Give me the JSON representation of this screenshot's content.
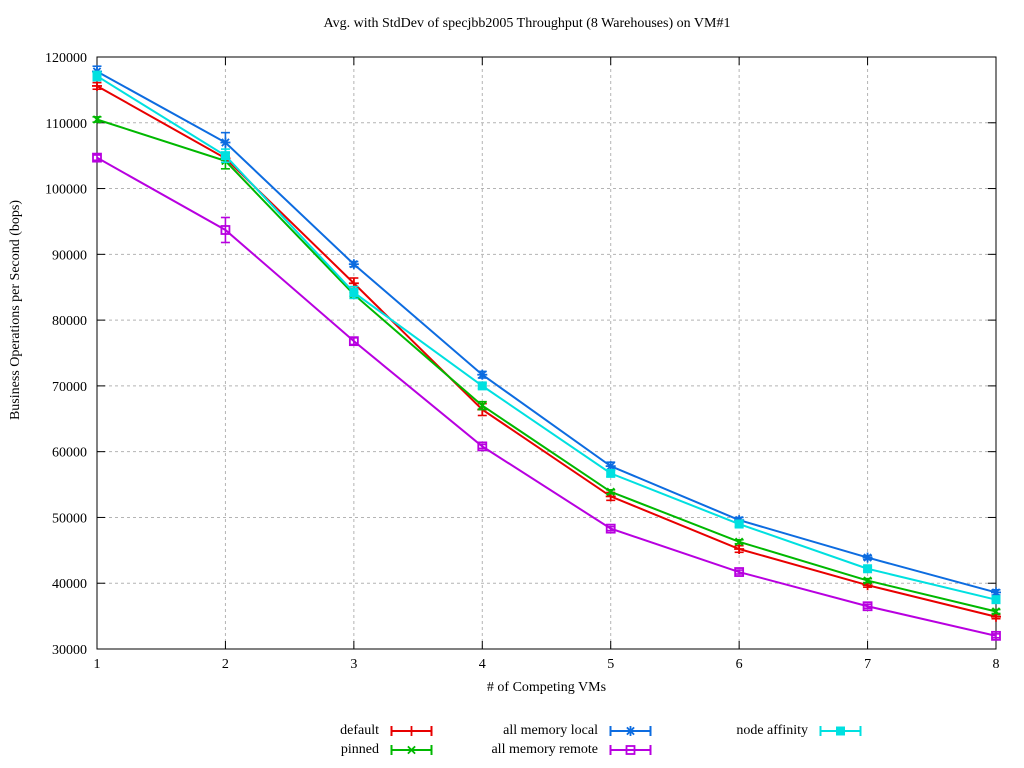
{
  "page": {
    "background": "#ffffff",
    "text_color": "#000000",
    "grid_color": "#b4b4b4"
  },
  "chart_data": {
    "type": "line",
    "title": "Avg. with StdDev of specjbb2005 Throughput (8 Warehouses) on VM#1",
    "xlabel": "# of Competing VMs",
    "ylabel": "Business Operations per Second (bops)",
    "xlim": [
      1,
      8
    ],
    "ylim": [
      30000,
      120000
    ],
    "xticks": [
      1,
      2,
      3,
      4,
      5,
      6,
      7,
      8
    ],
    "yticks": [
      30000,
      40000,
      50000,
      60000,
      70000,
      80000,
      90000,
      100000,
      110000,
      120000
    ],
    "grid": true,
    "legend_position": "below-plot",
    "error_bars": "stddev",
    "x": [
      1,
      2,
      3,
      4,
      5,
      6,
      7,
      8
    ],
    "series": [
      {
        "name": "default",
        "color": "#e80000",
        "marker": "plus",
        "values": [
          115600,
          104600,
          85600,
          66400,
          53200,
          45200,
          39700,
          34900
        ],
        "stddev": [
          500,
          300,
          800,
          900,
          600,
          500,
          300,
          300
        ]
      },
      {
        "name": "pinned",
        "color": "#00b800",
        "marker": "cross",
        "values": [
          110500,
          104200,
          83900,
          67000,
          53900,
          46300,
          40400,
          35700
        ],
        "stddev": [
          400,
          1200,
          300,
          600,
          300,
          300,
          300,
          300
        ]
      },
      {
        "name": "all memory local",
        "color": "#0d6ce0",
        "marker": "asterisk",
        "values": [
          117800,
          107000,
          88500,
          71700,
          57800,
          49600,
          43900,
          38600
        ],
        "stddev": [
          800,
          1500,
          400,
          500,
          600,
          400,
          300,
          400
        ]
      },
      {
        "name": "all memory remote",
        "color": "#b800e0",
        "marker": "open-square",
        "values": [
          104700,
          93700,
          76800,
          60800,
          48300,
          41700,
          36500,
          32000
        ],
        "stddev": [
          400,
          1900,
          500,
          300,
          300,
          300,
          300,
          300
        ]
      },
      {
        "name": "node affinity",
        "color": "#00e0e0",
        "marker": "filled-square",
        "values": [
          117100,
          105000,
          84200,
          70000,
          56700,
          49000,
          42200,
          37500
        ],
        "stddev": [
          700,
          1000,
          900,
          400,
          500,
          400,
          300,
          300
        ]
      }
    ]
  }
}
